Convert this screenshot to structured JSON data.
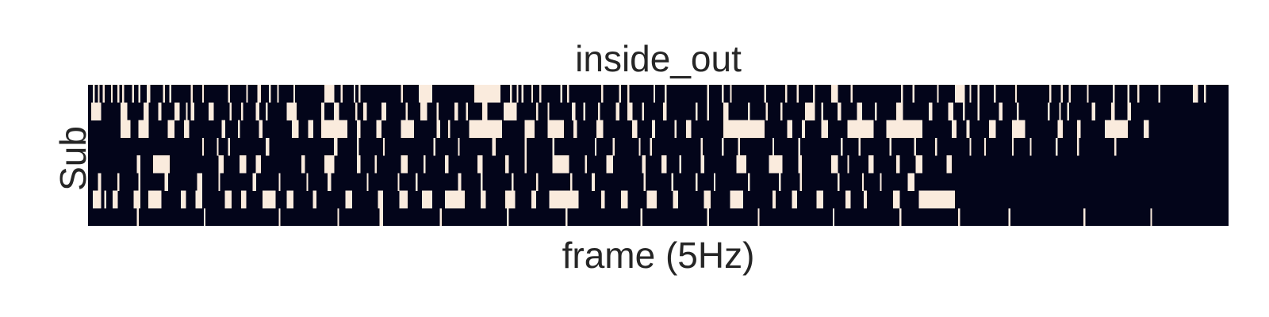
{
  "chart_data": {
    "type": "heatmap",
    "title": "inside_out",
    "xlabel": "frame (5Hz)",
    "ylabel": "Sub",
    "n_rows": 8,
    "n_frames": 700,
    "encoding": "binary on/off per frame; runs alternate starting with value 0",
    "colors": {
      "0": "#03051a",
      "1": "#faebdd"
    },
    "row_runs": [
      [
        3,
        1,
        2,
        1,
        2,
        1,
        4,
        1,
        3,
        1,
        2,
        1,
        5,
        1,
        3,
        1,
        4,
        2,
        8,
        1,
        3,
        1,
        12,
        1,
        6,
        1,
        15,
        1,
        10,
        1,
        6,
        2,
        5,
        1,
        4,
        1,
        9,
        1,
        18,
        6,
        4,
        1,
        7,
        1,
        2,
        1,
        25,
        1,
        10,
        8,
        26,
        16,
        6,
        1,
        3,
        1,
        2,
        1,
        5,
        1,
        4,
        1,
        12,
        1,
        3,
        1,
        20,
        1,
        10,
        1,
        4,
        1,
        15,
        1,
        6,
        1,
        25,
        1,
        8,
        1,
        4,
        1,
        20,
        1,
        12,
        1,
        6,
        1,
        9,
        1,
        10,
        4,
        8,
        1,
        30,
        1,
        6,
        1,
        14,
        1,
        10,
        6,
        3,
        1,
        4,
        1,
        9,
        1,
        12,
        1,
        20,
        1,
        6,
        1,
        4,
        1,
        10,
        1,
        15,
        1,
        8,
        1,
        5,
        1,
        12,
        1,
        20,
        3,
        4,
        1,
        6
      ],
      [
        2,
        6,
        12,
        4,
        10,
        3,
        6,
        2,
        8,
        3,
        4,
        1,
        2,
        2,
        9,
        3,
        10,
        1,
        6,
        1,
        8,
        2,
        4,
        1,
        12,
        6,
        15,
        2,
        6,
        3,
        10,
        1,
        4,
        2,
        9,
        3,
        12,
        1,
        8,
        4,
        6,
        1,
        10,
        2,
        5,
        1,
        9,
        3,
        10,
        8,
        12,
        1,
        6,
        1,
        14,
        2,
        5,
        1,
        8,
        1,
        10,
        2,
        5,
        3,
        6,
        1,
        12,
        2,
        18,
        1,
        6,
        1,
        9,
        3,
        12,
        1,
        10,
        1,
        8,
        1,
        14,
        6,
        4,
        1,
        9,
        2,
        10,
        3,
        8,
        1,
        12,
        4,
        16,
        2,
        10,
        3,
        6,
        1,
        8,
        1,
        12,
        2,
        9,
        1,
        18,
        1,
        6,
        1,
        4,
        1,
        14,
        2,
        10,
        2,
        8,
        2,
        3
      ],
      [
        20,
        6,
        5,
        6,
        12,
        4,
        6,
        3,
        20,
        2,
        8,
        1,
        12,
        2,
        18,
        4,
        6,
        3,
        5,
        16,
        6,
        2,
        10,
        3,
        12,
        8,
        14,
        2,
        5,
        1,
        12,
        20,
        14,
        6,
        8,
        10,
        6,
        2,
        12,
        4,
        18,
        3,
        9,
        2,
        12,
        1,
        6,
        3,
        20,
        25,
        14,
        3,
        6,
        2,
        10,
        4,
        12,
        16,
        8,
        22,
        18,
        3,
        6,
        2,
        12,
        4,
        10,
        8,
        20,
        3,
        9,
        2,
        15,
        14,
        10,
        3,
        16
      ],
      [
        70,
        1,
        8,
        1,
        6,
        1,
        22,
        2,
        40,
        2,
        12,
        1,
        15,
        1,
        30,
        1,
        14,
        1,
        20,
        2,
        18,
        1,
        16,
        1,
        25,
        1,
        10,
        1,
        15,
        1,
        6,
        1,
        30,
        1,
        12,
        1,
        9,
        1,
        20,
        1,
        15,
        1,
        25,
        1,
        10,
        1,
        18,
        1,
        14,
        1,
        12,
        1,
        20,
        1,
        8,
        1,
        16,
        1,
        10,
        1,
        15,
        1,
        12,
        1,
        22,
        1,
        20
      ],
      [
        30,
        2,
        8,
        10,
        30,
        3,
        10,
        4,
        6,
        3,
        25,
        2,
        12,
        6,
        14,
        2,
        9,
        1,
        15,
        4,
        10,
        1,
        12,
        2,
        18,
        3,
        14,
        2,
        10,
        1,
        16,
        10,
        10,
        1,
        12,
        4,
        18,
        2,
        10,
        3,
        8,
        1,
        12,
        2,
        20,
        6,
        14,
        8,
        10,
        2,
        18,
        4,
        6,
        1,
        12,
        3,
        14,
        2,
        10,
        4,
        15,
        3,
        6
      ],
      [
        6,
        2,
        10,
        1,
        12,
        1,
        15,
        2,
        18,
        3,
        10,
        1,
        20,
        2,
        14,
        1,
        16,
        1,
        12,
        2,
        22,
        1,
        18,
        1,
        10,
        1,
        25,
        2,
        12,
        1,
        18,
        1,
        14,
        1,
        20,
        1,
        12,
        2,
        30,
        1,
        16,
        1,
        14,
        1,
        10,
        1,
        20,
        1,
        18,
        1,
        12,
        1,
        22,
        1,
        14,
        1,
        10,
        1,
        16,
        4,
        8
      ],
      [
        3,
        5,
        2,
        1,
        4,
        3,
        10,
        4,
        5,
        8,
        12,
        3,
        6,
        4,
        14,
        4,
        6,
        3,
        10,
        8,
        7,
        4,
        12,
        2,
        18,
        4,
        16,
        3,
        10,
        5,
        9,
        6,
        8,
        12,
        10,
        3,
        12,
        6,
        10,
        3,
        8,
        18,
        14,
        2,
        10,
        4,
        12,
        6,
        10,
        3,
        16,
        4,
        12,
        8,
        18,
        2,
        10,
        3,
        12,
        4,
        14,
        3,
        8,
        2,
        16,
        4,
        12,
        22
      ],
      [
        30,
        1,
        40,
        1,
        45,
        1,
        35,
        1,
        25,
        2,
        35,
        1,
        40,
        1,
        35,
        1,
        45,
        1,
        40,
        1,
        30,
        1,
        45,
        1,
        40,
        1,
        35,
        1,
        30,
        1,
        45,
        1,
        40,
        1,
        15
      ]
    ]
  }
}
